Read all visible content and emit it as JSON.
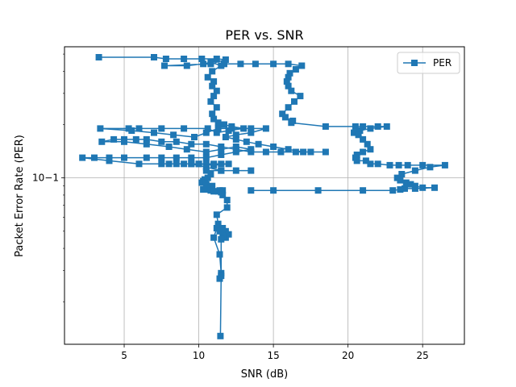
{
  "chart_data": {
    "type": "line",
    "title": "PER vs. SNR",
    "xlabel": "SNR (dB)",
    "ylabel": "Packet Error Rate (PER)",
    "xlim": [
      1.0,
      27.8
    ],
    "ylim": [
      0.0115,
      0.55
    ],
    "yscale": "log",
    "grid": true,
    "legend_position": "top-right",
    "x_ticks": [
      "5",
      "10",
      "15",
      "20",
      "25"
    ],
    "y_ticks": [
      "10−1"
    ],
    "series_color": "#1f77b4",
    "series": [
      {
        "name": "PER",
        "marker": "square",
        "x": [
          3.3,
          7.0,
          7.8,
          9.0,
          10.2,
          11.2,
          11.8,
          10.8,
          7.7,
          9.2,
          10.3,
          10.8,
          11.5,
          10.9,
          10.6,
          11.0,
          10.9,
          11.2,
          11.0,
          10.8,
          11.2,
          10.9,
          11.0,
          11.3,
          11.7,
          12.2,
          13.0,
          12.0,
          11.2,
          10.6,
          9.0,
          7.5,
          6.0,
          5.3,
          3.4,
          5.5,
          7.0,
          8.3,
          9.7,
          10.5,
          11.3,
          12.2,
          13.5,
          14.5,
          13.5,
          12.5,
          11.8,
          12.5,
          13.2,
          14.0,
          15.0,
          16.0,
          17.0,
          18.5,
          17.5,
          16.5,
          15.5,
          14.5,
          13.5,
          12.5,
          11.5,
          10.5,
          9.5,
          8.5,
          7.5,
          6.5,
          5.8,
          5.0,
          4.3,
          3.5,
          5.0,
          6.5,
          8.0,
          9.2,
          10.5,
          11.5,
          12.5,
          13.5,
          12.5,
          11.5,
          10.5,
          9.5,
          8.5,
          7.5,
          6.5,
          5.0,
          4.0,
          3.0,
          2.2,
          4.0,
          6.0,
          8.0,
          10.0,
          11.0,
          12.0,
          11.5,
          11.0,
          10.5,
          10.0,
          9.5,
          9.0,
          8.5,
          7.5,
          9.5,
          10.5,
          11.5,
          12.5,
          13.5,
          11.5,
          10.5,
          10.8,
          10.6,
          10.4,
          10.3,
          10.2,
          10.5,
          10.9,
          10.8,
          10.6,
          10.3,
          10.8,
          11.4,
          11.6,
          11.3,
          11.0,
          11.5,
          11.6,
          11.9,
          11.9,
          11.2,
          11.3,
          11.0,
          11.4,
          11.5,
          11.4
        ],
        "y": [
          0.48,
          0.48,
          0.47,
          0.47,
          0.47,
          0.47,
          0.465,
          0.44,
          0.43,
          0.43,
          0.44,
          0.45,
          0.43,
          0.4,
          0.37,
          0.35,
          0.33,
          0.31,
          0.29,
          0.27,
          0.25,
          0.23,
          0.215,
          0.205,
          0.2,
          0.195,
          0.19,
          0.185,
          0.18,
          0.19,
          0.19,
          0.19,
          0.19,
          0.19,
          0.19,
          0.185,
          0.18,
          0.175,
          0.17,
          0.18,
          0.19,
          0.19,
          0.19,
          0.19,
          0.18,
          0.175,
          0.17,
          0.165,
          0.16,
          0.155,
          0.15,
          0.145,
          0.14,
          0.14,
          0.14,
          0.14,
          0.14,
          0.14,
          0.14,
          0.145,
          0.15,
          0.155,
          0.155,
          0.16,
          0.16,
          0.165,
          0.165,
          0.165,
          0.165,
          0.16,
          0.16,
          0.155,
          0.15,
          0.145,
          0.14,
          0.145,
          0.15,
          0.145,
          0.14,
          0.135,
          0.13,
          0.13,
          0.13,
          0.13,
          0.13,
          0.13,
          0.13,
          0.13,
          0.13,
          0.125,
          0.12,
          0.12,
          0.12,
          0.118,
          0.12,
          0.12,
          0.12,
          0.12,
          0.12,
          0.12,
          0.12,
          0.12,
          0.12,
          0.12,
          0.115,
          0.11,
          0.11,
          0.11,
          0.11,
          0.11,
          0.105,
          0.1,
          0.098,
          0.096,
          0.094,
          0.092,
          0.09,
          0.088,
          0.086,
          0.086,
          0.085,
          0.085,
          0.085,
          0.084,
          0.084,
          0.083,
          0.08,
          0.075,
          0.068,
          0.062,
          0.055,
          0.046,
          0.037,
          0.029,
          0.027
        ]
      },
      {
        "name": "PER",
        "marker": "square",
        "x": [
          11.7,
          12.8,
          13.8,
          15.0,
          16.0,
          16.9,
          16.5,
          16.1,
          16.0,
          15.9,
          16.0,
          16.2,
          16.8,
          16.4,
          16.0,
          15.6,
          15.8,
          16.3,
          16.2,
          18.5,
          20.5,
          21.0,
          22.0,
          22.6,
          21.5,
          20.8,
          20.4,
          20.7,
          21.0,
          21.3,
          21.5,
          21.0,
          20.6,
          20.5,
          20.6,
          21.2,
          21.5,
          22.0,
          22.8,
          23.4,
          24.0,
          25.0,
          26.5,
          25.5,
          24.5,
          23.6,
          23.3,
          23.5,
          23.9,
          24.2,
          24.5,
          25.0,
          25.8,
          24.5,
          23.8,
          23.5,
          23.0,
          21.0,
          18.0,
          15.0,
          13.5
        ],
        "y": [
          0.44,
          0.44,
          0.44,
          0.44,
          0.44,
          0.43,
          0.41,
          0.39,
          0.37,
          0.35,
          0.33,
          0.31,
          0.29,
          0.27,
          0.25,
          0.23,
          0.22,
          0.21,
          0.205,
          0.195,
          0.195,
          0.195,
          0.195,
          0.195,
          0.19,
          0.185,
          0.18,
          0.175,
          0.165,
          0.155,
          0.145,
          0.14,
          0.135,
          0.13,
          0.125,
          0.125,
          0.12,
          0.12,
          0.118,
          0.118,
          0.118,
          0.118,
          0.118,
          0.115,
          0.11,
          0.105,
          0.1,
          0.097,
          0.094,
          0.092,
          0.09,
          0.088,
          0.088,
          0.087,
          0.087,
          0.086,
          0.085,
          0.085,
          0.085,
          0.085,
          0.085
        ]
      },
      {
        "name": "PER",
        "marker": "square",
        "x": [
          11.2,
          11.6,
          11.8,
          12.0,
          11.8,
          11.6,
          11.4,
          11.5,
          11.5,
          11.45
        ],
        "y": [
          0.052,
          0.052,
          0.05,
          0.048,
          0.046,
          0.047,
          0.05,
          0.045,
          0.028,
          0.0128
        ]
      }
    ]
  }
}
